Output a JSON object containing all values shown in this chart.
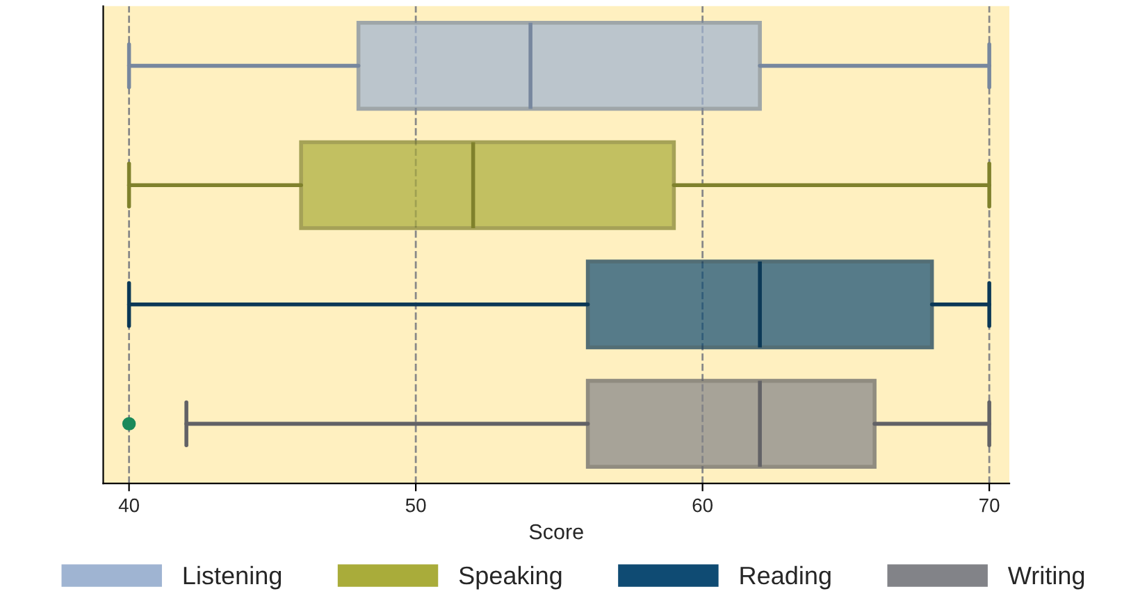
{
  "chart_data": {
    "type": "box",
    "orientation": "horizontal",
    "xlabel": "Score",
    "categories": [
      null,
      null,
      null,
      null
    ],
    "series": [
      {
        "name": "Listening",
        "color": "#9fb4d2",
        "boxes": [
          {
            "low": 40,
            "q1": 48,
            "median": 54,
            "q3": 62,
            "high": 70
          },
          null,
          null,
          null
        ]
      },
      {
        "name": "Speaking",
        "color": "#a9ac3a",
        "boxes": [
          null,
          {
            "low": 40,
            "q1": 46,
            "median": 52,
            "q3": 59,
            "high": 70
          },
          null,
          null
        ]
      },
      {
        "name": "Reading",
        "color": "#0f4b73",
        "boxes": [
          null,
          null,
          {
            "low": 40,
            "q1": 56,
            "median": 62,
            "q3": 68,
            "high": 70
          },
          null
        ]
      },
      {
        "name": "Writing",
        "color": "#828388",
        "boxes": [
          null,
          null,
          null,
          {
            "low": 42,
            "q1": 56,
            "median": 62,
            "q3": 66,
            "high": 70,
            "outliers": [
              40
            ]
          }
        ]
      }
    ],
    "xlim": [
      39.1,
      70.7
    ],
    "xticks": [
      40,
      50,
      60,
      70
    ],
    "grid": "x",
    "legend": "bottom"
  }
}
